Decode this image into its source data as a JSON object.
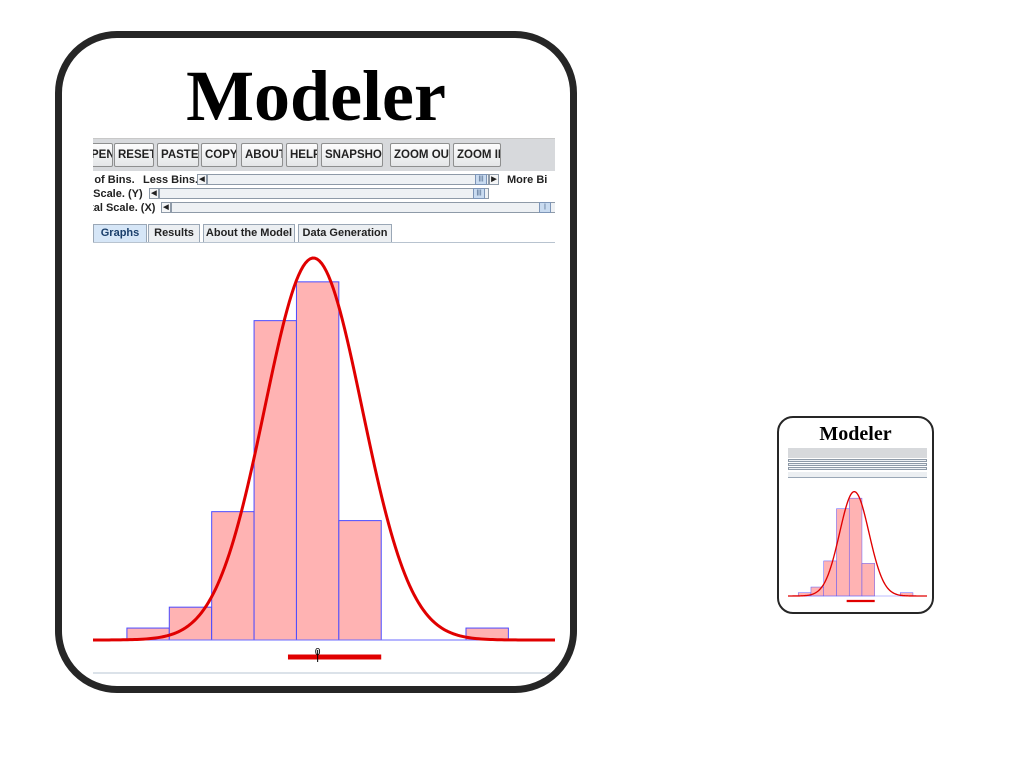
{
  "title": "Modeler",
  "toolbar": {
    "buttons": [
      "PEN",
      "RESET",
      "PASTE",
      "COPY",
      "ABOUT",
      "HELP",
      "SNAPSHOT",
      "ZOOM OUT",
      "ZOOM IN"
    ]
  },
  "sliders": {
    "bins_label": "r of Bins.",
    "less_bins": "Less Bins.",
    "more_bins": "More Bi",
    "y_scale_label": "l Scale. (Y)",
    "x_scale_label": "ital Scale. (X)"
  },
  "tabs": [
    "Graphs",
    "Results",
    "About the Model",
    "Data Generation"
  ],
  "active_tab": "Graphs",
  "colors": {
    "bar_fill": "#ffb3b3",
    "bar_edge": "#4a4aff",
    "curve": "#e00000",
    "axis": "#6b6bff"
  },
  "chart_data": {
    "type": "bar",
    "x_tick_label": "0",
    "bins": [
      {
        "left": -2.5,
        "right": -1.5,
        "height": 0.04
      },
      {
        "left": -1.5,
        "right": -0.5,
        "height": 0.11
      },
      {
        "left": -0.5,
        "right": 0.5,
        "height": 0.43
      },
      {
        "left": 0.5,
        "right": 1.5,
        "height": 1.07
      },
      {
        "left": 1.5,
        "right": 2.5,
        "height": 1.2
      },
      {
        "left": 2.5,
        "right": 3.5,
        "height": 0.4
      },
      {
        "left": 5.5,
        "right": 6.5,
        "height": 0.04
      }
    ],
    "curve": {
      "mean": 1.9,
      "sd": 1.15,
      "peak": 1.28
    },
    "mean_bar": [
      1.3,
      3.5
    ],
    "x_domain": [
      -3.3,
      7.6
    ],
    "y_domain": [
      0,
      1.3
    ]
  }
}
